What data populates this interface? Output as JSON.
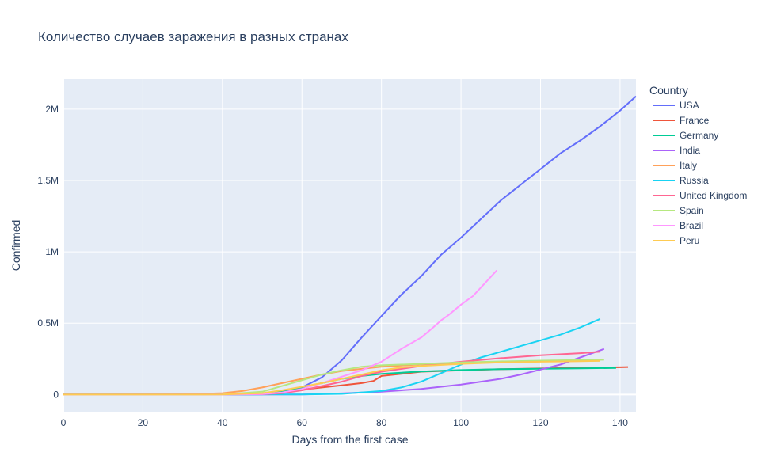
{
  "chart_data": {
    "type": "line",
    "title": "Количество случаев заражения в разных странах",
    "xlabel": "Days from the first case",
    "ylabel": "Confirmed",
    "xlim": [
      0,
      144
    ],
    "ylim": [
      -120000,
      2210000
    ],
    "x_ticks": [
      0,
      20,
      40,
      60,
      80,
      100,
      120,
      140
    ],
    "y_ticks": [
      {
        "value": 0,
        "label": "0"
      },
      {
        "value": 500000,
        "label": "0.5M"
      },
      {
        "value": 1000000,
        "label": "1M"
      },
      {
        "value": 1500000,
        "label": "1.5M"
      },
      {
        "value": 2000000,
        "label": "2M"
      }
    ],
    "grid": true,
    "legend": {
      "title": "Country",
      "placement": "right"
    },
    "plot_bg": "#e5ecf6",
    "series": [
      {
        "name": "USA",
        "color": "#636efa",
        "x": [
          0,
          30,
          40,
          50,
          55,
          60,
          65,
          70,
          75,
          80,
          85,
          90,
          95,
          100,
          105,
          110,
          115,
          120,
          125,
          130,
          135,
          140,
          144
        ],
        "y": [
          0,
          0,
          100,
          1500,
          15000,
          50000,
          120000,
          240000,
          400000,
          550000,
          700000,
          830000,
          980000,
          1100000,
          1230000,
          1360000,
          1470000,
          1580000,
          1690000,
          1780000,
          1880000,
          1990000,
          2090000
        ]
      },
      {
        "name": "France",
        "color": "#ef553b",
        "x": [
          0,
          40,
          50,
          55,
          60,
          65,
          70,
          75,
          78,
          80,
          90,
          100,
          110,
          120,
          130,
          140,
          142
        ],
        "y": [
          0,
          100,
          5000,
          15000,
          35000,
          50000,
          65000,
          80000,
          95000,
          130000,
          160000,
          170000,
          178000,
          183000,
          188000,
          191000,
          193000
        ]
      },
      {
        "name": "Germany",
        "color": "#00cc96",
        "x": [
          0,
          40,
          50,
          55,
          60,
          65,
          70,
          75,
          80,
          90,
          100,
          110,
          120,
          130,
          139
        ],
        "y": [
          0,
          100,
          5000,
          20000,
          50000,
          80000,
          110000,
          130000,
          145000,
          162000,
          172000,
          178000,
          181000,
          184000,
          186000
        ]
      },
      {
        "name": "India",
        "color": "#ab63fa",
        "x": [
          0,
          60,
          70,
          80,
          90,
          100,
          105,
          110,
          115,
          120,
          125,
          130,
          134,
          136
        ],
        "y": [
          0,
          1000,
          8000,
          20000,
          40000,
          70000,
          90000,
          110000,
          140000,
          175000,
          210000,
          260000,
          300000,
          320000
        ]
      },
      {
        "name": "Italy",
        "color": "#ffa15a",
        "x": [
          0,
          30,
          40,
          45,
          50,
          55,
          60,
          65,
          70,
          75,
          80,
          90,
          100,
          110,
          120,
          130,
          135
        ],
        "y": [
          0,
          500,
          10000,
          25000,
          50000,
          80000,
          110000,
          140000,
          165000,
          180000,
          195000,
          212000,
          222000,
          228000,
          232000,
          235000,
          237000
        ]
      },
      {
        "name": "Russia",
        "color": "#19d3f3",
        "x": [
          0,
          60,
          70,
          80,
          85,
          90,
          95,
          100,
          105,
          110,
          115,
          120,
          125,
          130,
          135
        ],
        "y": [
          0,
          1000,
          5000,
          25000,
          50000,
          90000,
          150000,
          210000,
          260000,
          300000,
          340000,
          380000,
          420000,
          470000,
          530000
        ]
      },
      {
        "name": "United Kingdom",
        "color": "#ff6692",
        "x": [
          0,
          50,
          55,
          60,
          65,
          70,
          75,
          80,
          85,
          90,
          100,
          110,
          120,
          130,
          135
        ],
        "y": [
          0,
          2000,
          10000,
          30000,
          60000,
          90000,
          130000,
          160000,
          180000,
          200000,
          230000,
          255000,
          275000,
          290000,
          300000
        ]
      },
      {
        "name": "Spain",
        "color": "#b6e880",
        "x": [
          0,
          40,
          50,
          55,
          60,
          65,
          70,
          75,
          80,
          90,
          100,
          110,
          120,
          130,
          136
        ],
        "y": [
          0,
          500,
          20000,
          60000,
          100000,
          140000,
          170000,
          195000,
          205000,
          215000,
          225000,
          232000,
          238000,
          242000,
          244000
        ]
      },
      {
        "name": "Brazil",
        "color": "#ff97ff",
        "x": [
          0,
          40,
          50,
          55,
          60,
          65,
          70,
          75,
          80,
          85,
          90,
          93,
          95,
          97,
          100,
          103,
          106,
          109
        ],
        "y": [
          0,
          100,
          3000,
          15000,
          40000,
          80000,
          125000,
          170000,
          230000,
          320000,
          400000,
          470000,
          520000,
          560000,
          630000,
          690000,
          780000,
          870000
        ]
      },
      {
        "name": "Peru",
        "color": "#fecb52",
        "x": [
          0,
          40,
          50,
          55,
          60,
          65,
          70,
          75,
          80,
          85,
          90,
          100,
          110,
          120,
          130,
          135
        ],
        "y": [
          0,
          500,
          10000,
          30000,
          55000,
          80000,
          110000,
          140000,
          170000,
          190000,
          200000,
          215000,
          225000,
          230000,
          234000,
          236000
        ]
      }
    ]
  }
}
